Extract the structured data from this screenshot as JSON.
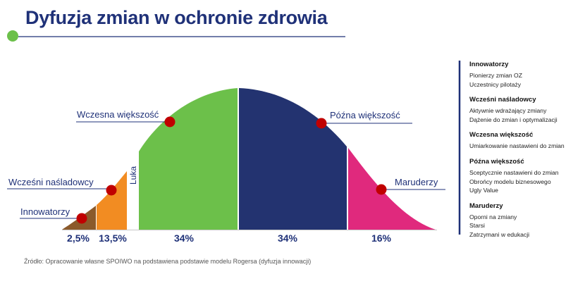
{
  "title": "Dyfuzja zmian w ochronie zdrowia",
  "source": "Źródło: Opracowanie własne SPOIWO na podstawiena podstawie modelu Rogersa (dyfuzja innowacji)",
  "colors": {
    "title": "#1f3178",
    "innovators": "#8b5a2b",
    "early_adopters": "#f28c22",
    "early_majority": "#6cc04a",
    "late_majority": "#233370",
    "laggards": "#e0297d",
    "marker": "#c00000",
    "legend_rule": "#1f3178"
  },
  "diagram": {
    "segments": [
      {
        "label": "Innowatorzy",
        "percent": "2,5%"
      },
      {
        "label": "Wcześni naśladowcy",
        "percent": "13,5%"
      },
      {
        "label": "Wczesna większość",
        "percent": "34%"
      },
      {
        "label": "Późna większość",
        "percent": "34%"
      },
      {
        "label": "Maruderzy",
        "percent": "16%"
      }
    ],
    "gap_label": "Luka"
  },
  "legend": [
    {
      "title": "Innowatorzy",
      "items": [
        "Pionierzy zmian OZ",
        "Uczestnicy pilotaży"
      ]
    },
    {
      "title": "Wcześni naśladowcy",
      "items": [
        "Aktywnie wdrażający zmiany",
        "Dążenie do zmian i optymalizacji"
      ]
    },
    {
      "title": "Wczesna większość",
      "items": [
        "Umiarkowanie nastawieni do zmian"
      ]
    },
    {
      "title": "Późna większość",
      "items": [
        "Sceptycznie nastawieni do zmian",
        "Obrońcy modelu biznesowego",
        "Ugly Value"
      ]
    },
    {
      "title": "Maruderzy",
      "items": [
        "Oporni na zmiany",
        "Starsi",
        "Zatrzymani w edukacji"
      ]
    }
  ]
}
